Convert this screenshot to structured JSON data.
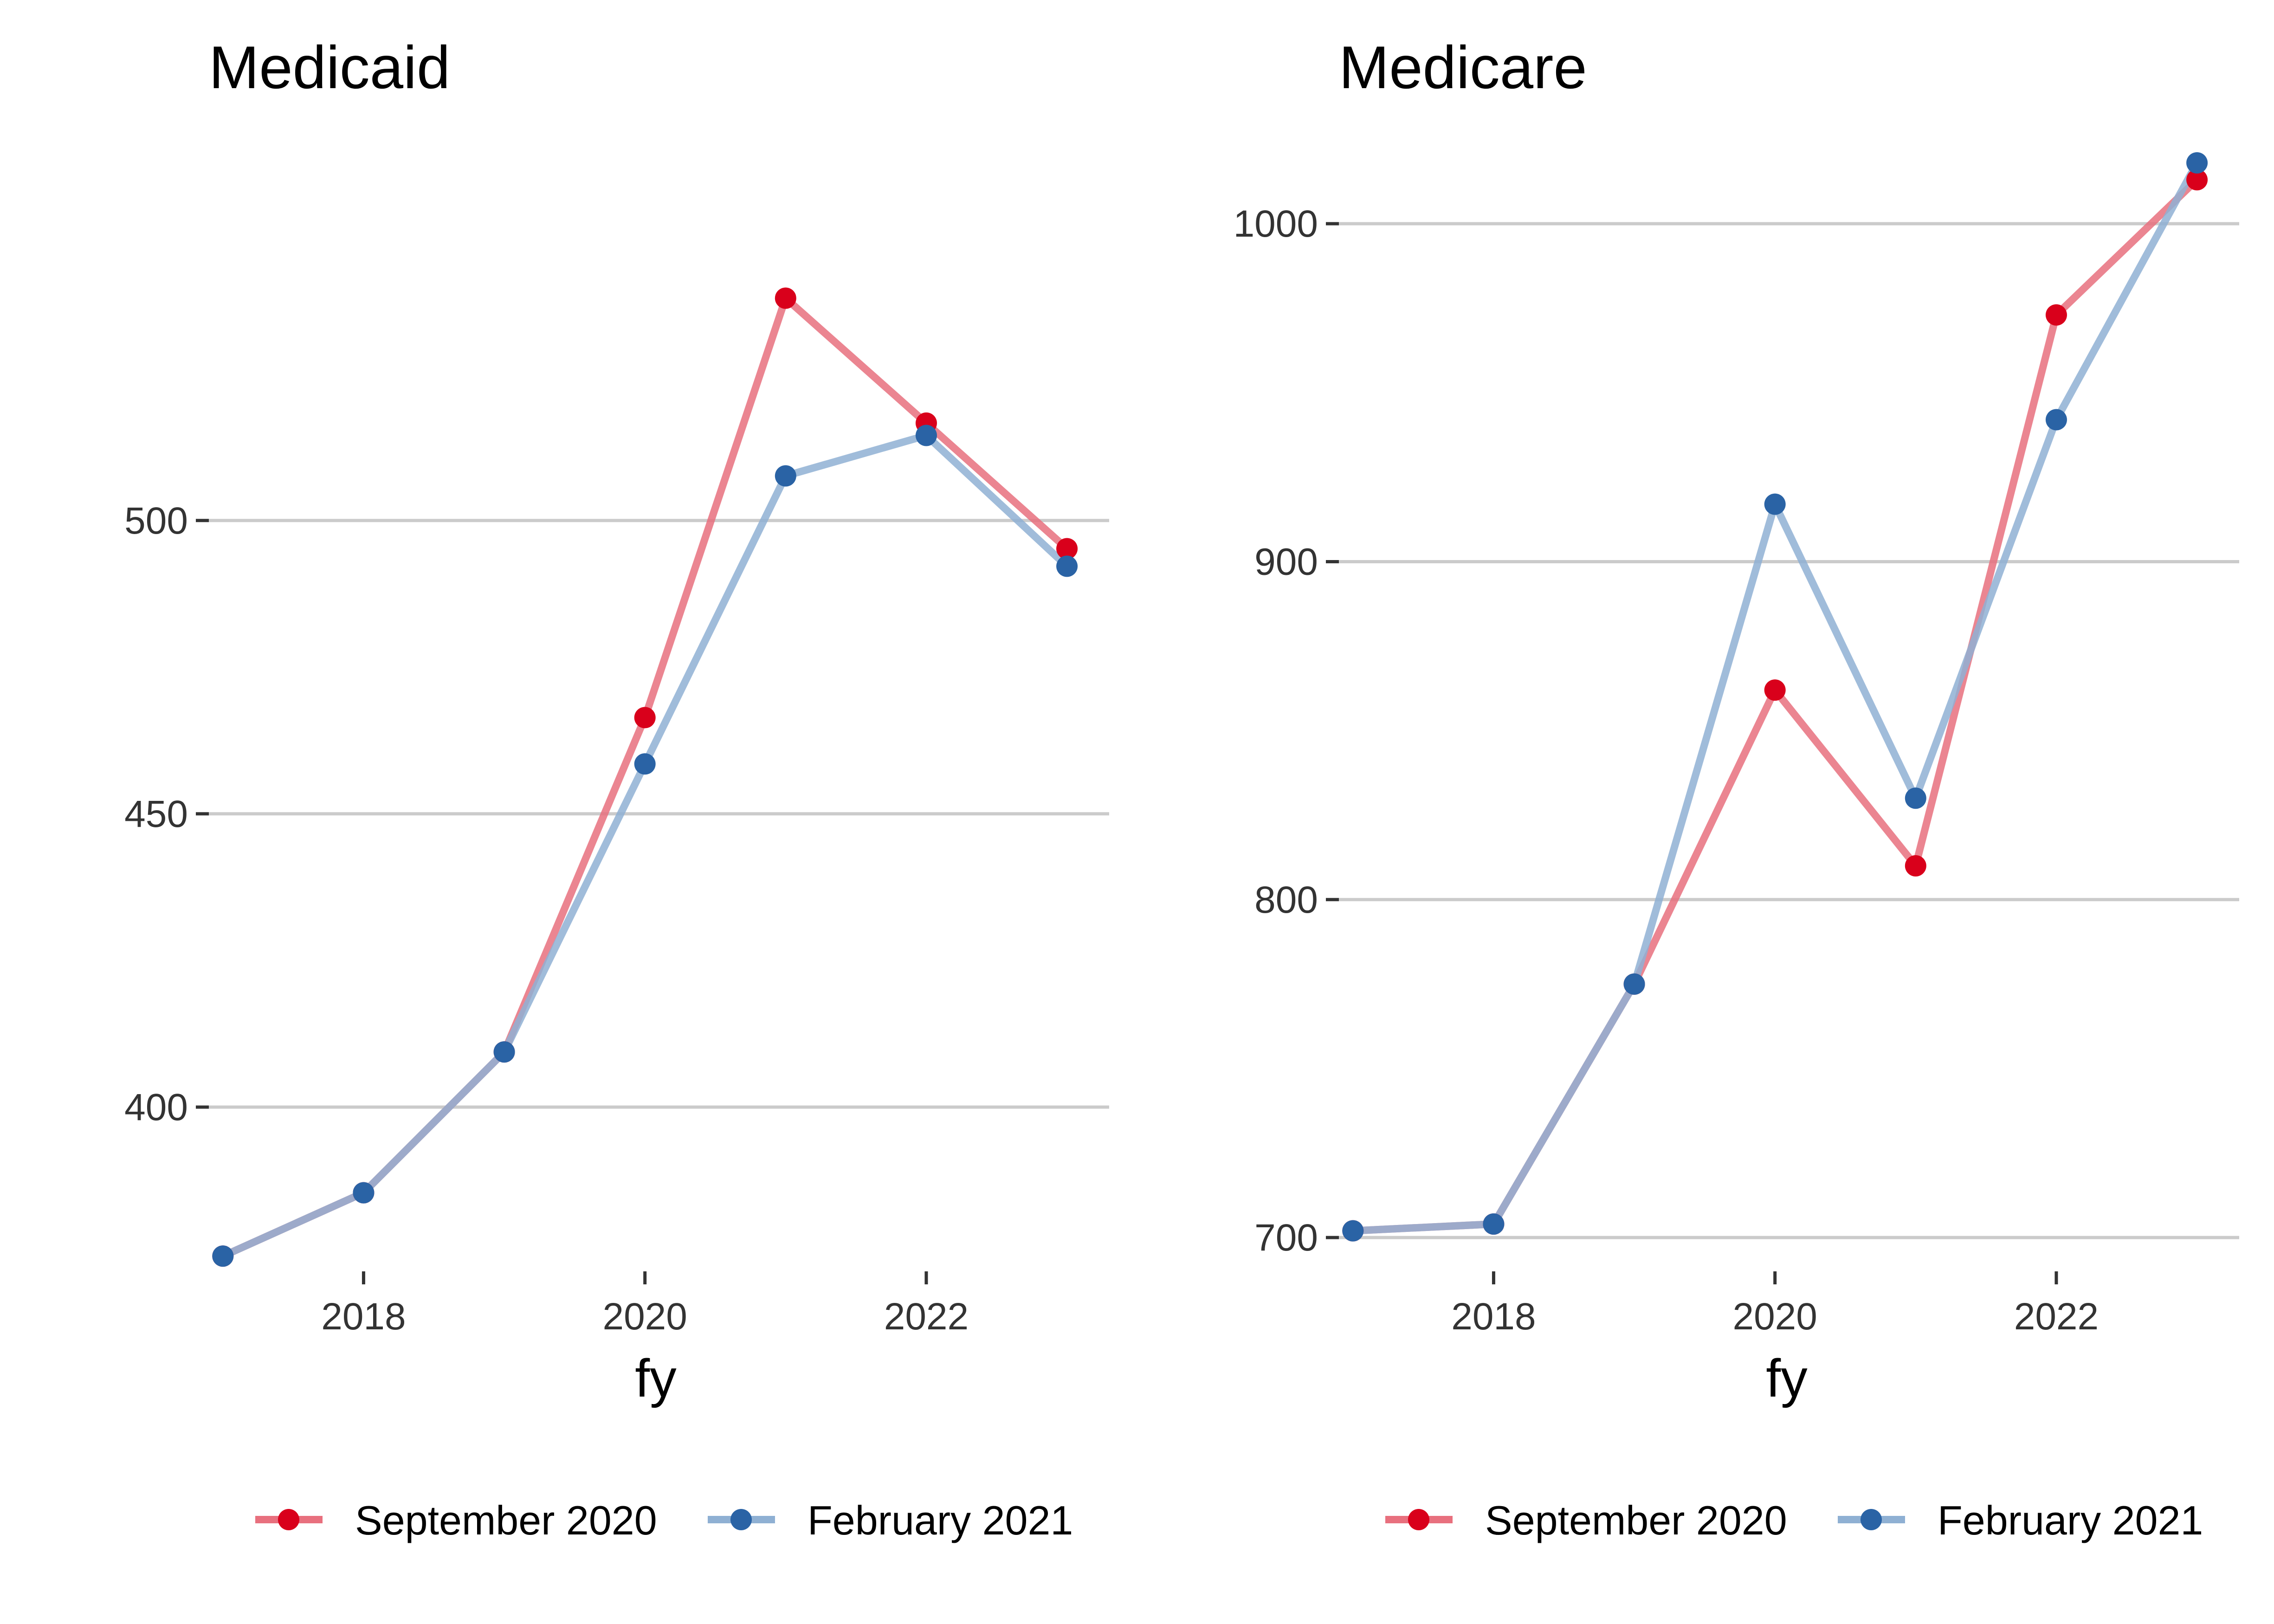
{
  "chart_data": [
    {
      "type": "line",
      "title": "Medicaid",
      "xlabel": "fy",
      "ylabel": "",
      "x": [
        2017,
        2018,
        2019,
        2020,
        2021,
        2022,
        2023
      ],
      "xlim": [
        2016.9,
        2023.3
      ],
      "ylim": [
        372,
        565
      ],
      "xticks": [
        "2018",
        "2020",
        "2022"
      ],
      "xtick_values": [
        2018,
        2020,
        2022
      ],
      "yticks": [
        "400",
        "450",
        "500"
      ],
      "ytick_values": [
        400,
        450,
        500
      ],
      "grid": "horizontal-major",
      "legend_position": "bottom",
      "series": [
        {
          "name": "September 2020",
          "values": [
            374.6,
            385.4,
            409.4,
            466.4,
            537.9,
            516.6,
            495.2
          ]
        },
        {
          "name": "February 2021",
          "values": [
            374.6,
            385.4,
            409.4,
            458.5,
            507.6,
            514.5,
            492.2
          ]
        }
      ]
    },
    {
      "type": "line",
      "title": "Medicare",
      "xlabel": "fy",
      "ylabel": "",
      "x": [
        2017,
        2018,
        2019,
        2020,
        2021,
        2022,
        2023
      ],
      "xlim": [
        2016.9,
        2023.3
      ],
      "ylim": [
        690,
        1025
      ],
      "xticks": [
        "2018",
        "2020",
        "2022"
      ],
      "xtick_values": [
        2018,
        2020,
        2022
      ],
      "yticks": [
        "700",
        "800",
        "900",
        "1000"
      ],
      "ytick_values": [
        700,
        800,
        900,
        1000
      ],
      "grid": "horizontal-major",
      "legend_position": "bottom",
      "series": [
        {
          "name": "September 2020",
          "values": [
            702,
            704,
            775,
            862,
            810,
            973,
            1013
          ]
        },
        {
          "name": "February 2021",
          "values": [
            702,
            704,
            775,
            917,
            830,
            942,
            1018
          ]
        }
      ]
    }
  ],
  "colors": {
    "September 2020": {
      "line": "#E8707E",
      "point": "#D9001B"
    },
    "February 2021": {
      "line": "#8FB0D3",
      "point": "#2A63A5"
    },
    "grid": "#CBCBCB",
    "text": "#333333"
  }
}
